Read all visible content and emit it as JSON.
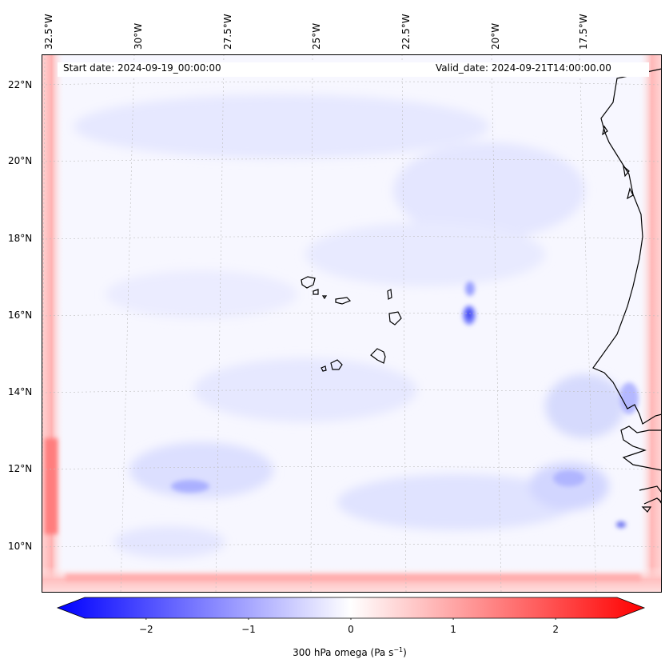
{
  "map": {
    "start_date": "Start date: 2024-09-19_00:00:00",
    "valid_date": "Valid_date: 2024-09-21T14:00:00.00",
    "lon_labels": [
      "32.5°W",
      "30°W",
      "27.5°W",
      "25°W",
      "22.5°W",
      "20°W",
      "17.5°W"
    ],
    "lat_labels": [
      "22°N",
      "20°N",
      "18°N",
      "16°N",
      "14°N",
      "12°N",
      "10°N"
    ],
    "grid": "dashed gridlines"
  },
  "colorbar": {
    "label_main": "300 hPa omega (Pa s",
    "label_exp": "−1",
    "label_end": ")",
    "ticks": [
      "−2",
      "−1",
      "0",
      "1",
      "2"
    ],
    "tick_values": [
      -2,
      -1,
      0,
      1,
      2
    ],
    "range": [
      -2.6,
      2.6
    ],
    "colors": {
      "min": "#0000ff",
      "mid": "#ffffff",
      "max": "#ff0000"
    }
  }
}
